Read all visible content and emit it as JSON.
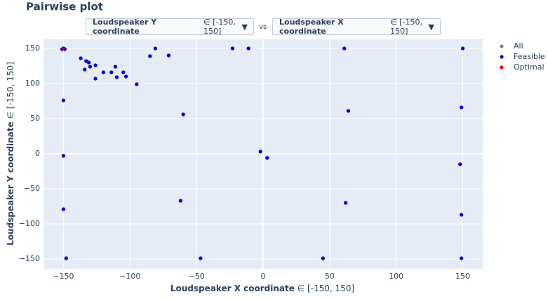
{
  "chart_data": {
    "type": "scatter",
    "title": "Pairwise plot",
    "dropdown_y": {
      "name": "Loudspeaker Y coordinate",
      "range": "∈ [-150, 150]"
    },
    "vs": "vs",
    "dropdown_x": {
      "name": "Loudspeaker X coordinate",
      "range": "∈ [-150, 150]"
    },
    "x_label": {
      "name": "Loudspeaker X coordinate",
      "range": "∈ [-150, 150]"
    },
    "y_label": {
      "name": "Loudspeaker Y coordinate",
      "range": "∈ [-150, 150]"
    },
    "xlim": [
      -165,
      165
    ],
    "ylim": [
      -164,
      163
    ],
    "xticks": [
      {
        "value": -150,
        "label": "−150"
      },
      {
        "value": -100,
        "label": "−100"
      },
      {
        "value": -50,
        "label": "−50"
      },
      0,
      50,
      100,
      150
    ],
    "yticks": [
      {
        "value": -150,
        "label": "−150"
      },
      {
        "value": -100,
        "label": "−100"
      },
      {
        "value": -50,
        "label": "−50"
      },
      0,
      50,
      100,
      150
    ],
    "grid": true,
    "series": [
      {
        "name": "All",
        "color": "#808080",
        "x": [
          -151,
          -150,
          -149,
          -150,
          -150,
          -150,
          -148,
          -137,
          -134,
          -133,
          -131,
          -130,
          -126,
          -126,
          -120,
          -114,
          -111,
          -110,
          -105,
          -103,
          -95,
          -85,
          -81,
          -71,
          -60,
          -62,
          -47,
          -23,
          -11,
          -2,
          3,
          45,
          61,
          64,
          62,
          148,
          149,
          150,
          149,
          149
        ],
        "values": [
          149,
          150,
          149,
          76,
          -3,
          -79,
          -149,
          136,
          120,
          132,
          130,
          124,
          126,
          107,
          116,
          116,
          124,
          109,
          116,
          110,
          99,
          139,
          150,
          140,
          56,
          -67,
          -149,
          150,
          150,
          3,
          -6,
          -149,
          150,
          61,
          -70,
          -15,
          66,
          150,
          -87,
          -149
        ]
      },
      {
        "name": "Feasible",
        "color": "#0000e6",
        "x": [
          -151,
          -150,
          -149,
          -150,
          -150,
          -150,
          -148,
          -137,
          -134,
          -133,
          -131,
          -130,
          -126,
          -126,
          -120,
          -114,
          -111,
          -110,
          -105,
          -103,
          -95,
          -85,
          -81,
          -71,
          -60,
          -62,
          -47,
          -23,
          -11,
          -2,
          3,
          45,
          61,
          64,
          62,
          148,
          149,
          150,
          149,
          149
        ],
        "values": [
          149,
          150,
          149,
          76,
          -3,
          -79,
          -149,
          136,
          120,
          132,
          130,
          124,
          126,
          107,
          116,
          116,
          124,
          109,
          116,
          110,
          99,
          139,
          150,
          140,
          56,
          -67,
          -149,
          150,
          150,
          3,
          -6,
          -149,
          150,
          61,
          -70,
          -15,
          66,
          150,
          -87,
          -149
        ]
      },
      {
        "name": "Optimal",
        "color": "#e60000",
        "x": [
          -150
        ],
        "values": [
          149
        ]
      }
    ]
  }
}
